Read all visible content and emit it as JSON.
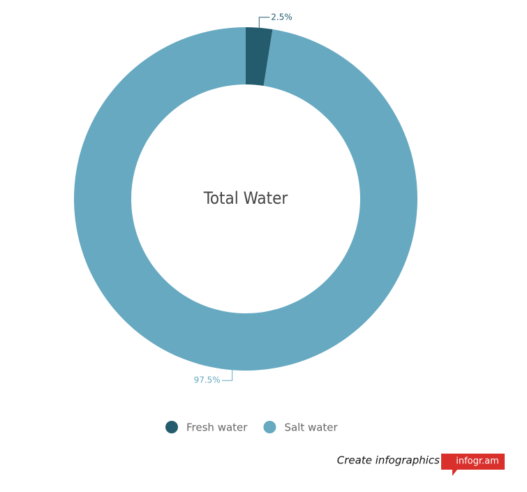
{
  "chart_data": {
    "type": "donut",
    "center_label": "Total Water",
    "categories": [
      "Fresh water",
      "Salt water"
    ],
    "values": [
      2.5,
      97.5
    ],
    "value_labels": [
      "2.5%",
      "97.5%"
    ],
    "colors": [
      "#245c6e",
      "#67a9c1"
    ],
    "legend": "bottom"
  },
  "footer": {
    "text": "Create infographics",
    "brand": "infogr.am"
  }
}
